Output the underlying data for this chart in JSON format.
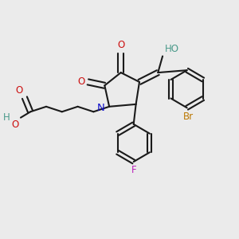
{
  "bg_color": "#EBEBEB",
  "bond_color": "#1A1A1A",
  "lw": 1.5,
  "figsize": [
    3.0,
    3.0
  ],
  "dpi": 100,
  "colors": {
    "N": "#1010CC",
    "O": "#CC1010",
    "OH": "#4a9a8a",
    "Br": "#BB7700",
    "F": "#BB22BB",
    "H": "#4a9a8a"
  },
  "fs": 8.5
}
